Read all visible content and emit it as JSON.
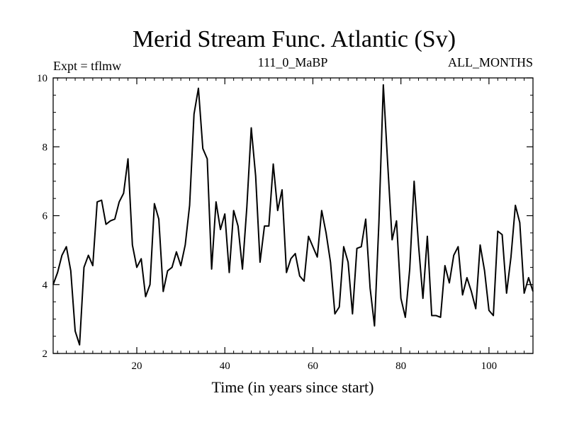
{
  "chart_data": {
    "type": "line",
    "title": "Merid Stream Func. Atlantic (Sv)",
    "subtitle_left": "Expt = tflmw",
    "subtitle_center": "111_0_MaBP",
    "subtitle_right": "ALL_MONTHS",
    "xlabel": "Time (in years since start)",
    "ylabel": "",
    "xlim": [
      1,
      110
    ],
    "ylim": [
      2,
      10
    ],
    "xticks": [
      20,
      40,
      60,
      80,
      100
    ],
    "yticks": [
      2,
      4,
      6,
      8,
      10
    ],
    "grid": false,
    "series": [
      {
        "name": "Merid Stream Func. Atlantic",
        "color": "#000000",
        "x": [
          1,
          2,
          3,
          4,
          5,
          6,
          7,
          8,
          9,
          10,
          11,
          12,
          13,
          14,
          15,
          16,
          17,
          18,
          19,
          20,
          21,
          22,
          23,
          24,
          25,
          26,
          27,
          28,
          29,
          30,
          31,
          32,
          33,
          34,
          35,
          36,
          37,
          38,
          39,
          40,
          41,
          42,
          43,
          44,
          45,
          46,
          47,
          48,
          49,
          50,
          51,
          52,
          53,
          54,
          55,
          56,
          57,
          58,
          59,
          60,
          61,
          62,
          63,
          64,
          65,
          66,
          67,
          68,
          69,
          70,
          71,
          72,
          73,
          74,
          75,
          76,
          77,
          78,
          79,
          80,
          81,
          82,
          83,
          84,
          85,
          86,
          87,
          88,
          89,
          90,
          91,
          92,
          93,
          94,
          95,
          96,
          97,
          98,
          99,
          100,
          101,
          102,
          103,
          104,
          105,
          106,
          107,
          108,
          109,
          110
        ],
        "values": [
          4.0,
          4.35,
          4.85,
          5.1,
          4.4,
          2.65,
          2.25,
          4.5,
          4.85,
          4.55,
          6.4,
          6.45,
          5.75,
          5.85,
          5.9,
          6.4,
          6.65,
          7.65,
          5.15,
          4.5,
          4.75,
          3.65,
          4.0,
          6.35,
          5.9,
          3.8,
          4.4,
          4.5,
          4.95,
          4.55,
          5.15,
          6.3,
          8.95,
          9.7,
          7.95,
          7.65,
          4.45,
          6.4,
          5.6,
          6.05,
          4.35,
          6.15,
          5.7,
          4.45,
          6.25,
          8.55,
          7.15,
          4.65,
          5.7,
          5.7,
          7.5,
          6.15,
          6.75,
          4.35,
          4.75,
          4.9,
          4.25,
          4.1,
          5.4,
          5.1,
          4.8,
          6.15,
          5.5,
          4.65,
          3.15,
          3.35,
          5.1,
          4.65,
          3.15,
          5.05,
          5.1,
          5.9,
          3.9,
          2.8,
          5.8,
          9.8,
          7.5,
          5.3,
          5.85,
          3.6,
          3.05,
          4.45,
          7.0,
          5.15,
          3.6,
          5.4,
          3.1,
          3.1,
          3.05,
          4.55,
          4.05,
          4.85,
          5.1,
          3.7,
          4.2,
          3.8,
          3.3,
          5.15,
          4.4,
          3.25,
          3.1,
          5.55,
          5.45,
          3.75,
          4.8,
          6.3,
          5.8,
          3.75,
          4.2,
          3.8
        ]
      }
    ]
  }
}
